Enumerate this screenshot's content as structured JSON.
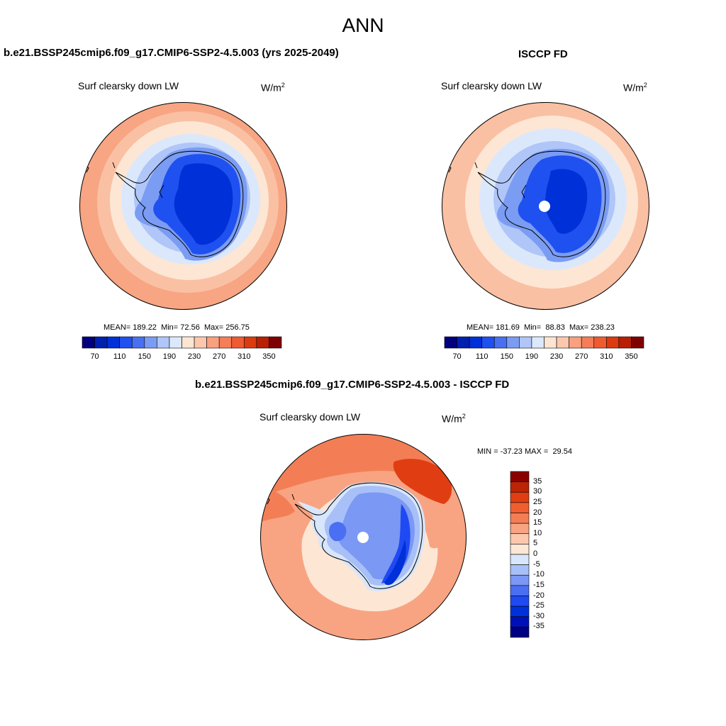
{
  "figure": {
    "title": "ANN"
  },
  "palettes": {
    "abs": [
      "#00007f",
      "#0020b0",
      "#0030d8",
      "#1f50f0",
      "#4870f0",
      "#7b9cf3",
      "#b0c6f8",
      "#dce8fc",
      "#fde5d3",
      "#fcc7ad",
      "#f9a07f",
      "#f57d58",
      "#ef5a30",
      "#dc3a10",
      "#b81f05",
      "#7f0000"
    ],
    "diff": [
      "#000082",
      "#0010b8",
      "#0030da",
      "#1f4af2",
      "#4a6ff2",
      "#7a98f4",
      "#a8c0f7",
      "#d8e6fb",
      "#fde6d4",
      "#fbc8ae",
      "#f8a482",
      "#f37e55",
      "#f05e30",
      "#e03e12",
      "#bd2305",
      "#8a0000"
    ]
  },
  "panels": {
    "model": {
      "title": "b.e21.BSSP245cmip6.f09_g17.CMIP6-SSP2-4.5.003 (yrs 2025-2049)",
      "variable": "Surf clearsky down LW",
      "units": "W/m",
      "units_sup": "2",
      "stats": {
        "mean_label": "MEAN=",
        "mean": "189.22",
        "min_label": "Min=",
        "min": "72.56",
        "max_label": "Max=",
        "max": "256.75"
      },
      "colorbar_ticks": [
        "70",
        "110",
        "150",
        "190",
        "230",
        "270",
        "310",
        "350"
      ]
    },
    "obs": {
      "title": "ISCCP FD",
      "variable": "Surf clearsky down LW",
      "units": "W/m",
      "units_sup": "2",
      "stats": {
        "mean_label": "MEAN=",
        "mean": "181.69",
        "min_label": "Min=",
        "min": "88.83",
        "max_label": "Max=",
        "max": "238.23"
      },
      "colorbar_ticks": [
        "70",
        "110",
        "150",
        "190",
        "230",
        "270",
        "310",
        "350"
      ]
    },
    "diff": {
      "title": "b.e21.BSSP245cmip6.f09_g17.CMIP6-SSP2-4.5.003 - ISCCP FD",
      "variable": "Surf clearsky down LW",
      "units": "W/m",
      "units_sup": "2",
      "stats": {
        "min_label": "MIN =",
        "min": "-37.23",
        "max_label": "MAX =",
        "max": "29.54"
      },
      "colorbar_ticks": [
        "35",
        "30",
        "25",
        "20",
        "15",
        "10",
        "5",
        "0",
        "-5",
        "-10",
        "-15",
        "-20",
        "-25",
        "-30",
        "-35"
      ]
    }
  }
}
